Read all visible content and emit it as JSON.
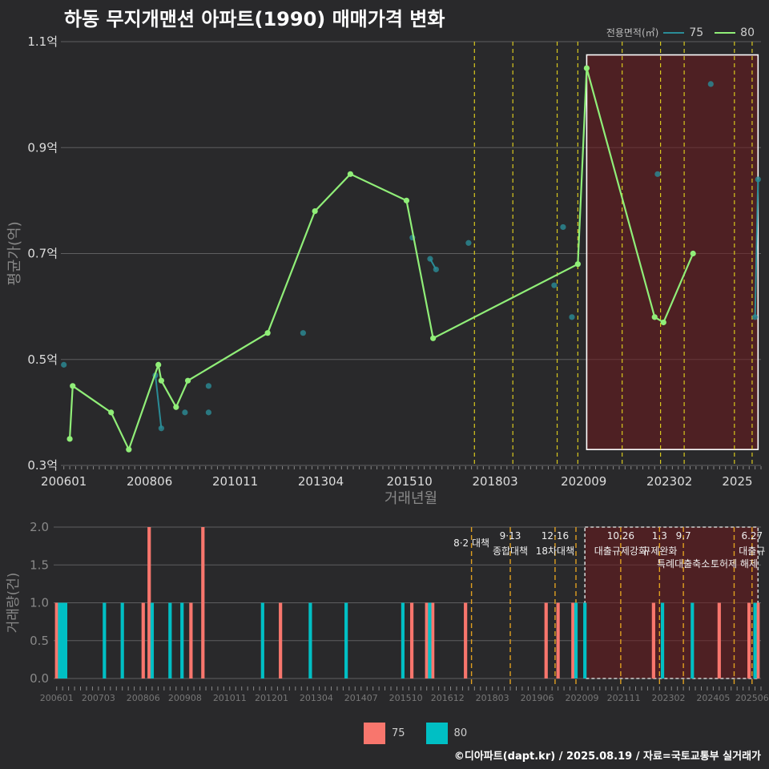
{
  "title": "하동 무지개맨션 아파트(1990) 매매가격 변화",
  "legend": {
    "title": "전용면적(㎡)",
    "items": [
      {
        "name": "75",
        "color": "#2a8c97"
      },
      {
        "name": "80",
        "color": "#90ee78"
      }
    ]
  },
  "bar_legend": {
    "items": [
      {
        "name": "75",
        "color": "#f8766d"
      },
      {
        "name": "80",
        "color": "#00bfc4"
      }
    ]
  },
  "credit": "©디아파트(dapt.kr) / 2025.08.19 / 자료=국토교통부 실거래가",
  "chart_data": [
    {
      "type": "line",
      "xlabel": "거래년월",
      "ylabel": "평균가(억)",
      "ylim": [
        0.3,
        1.1
      ],
      "y_ticks": [
        {
          "v": 0.3,
          "label": "0.3억"
        },
        {
          "v": 0.5,
          "label": "0.5억"
        },
        {
          "v": 0.7,
          "label": "0.7억"
        },
        {
          "v": 0.9,
          "label": "0.9억"
        },
        {
          "v": 1.1,
          "label": "1.1억"
        }
      ],
      "x_ticks": [
        "200601",
        "200806",
        "201011",
        "201304",
        "201510",
        "201803",
        "202009",
        "202302",
        "2025"
      ],
      "highlight_period": [
        "2020-10",
        "2025-08"
      ],
      "policy_lines": [
        "2017-08",
        "2018-09",
        "2019-12",
        "2020-07",
        "2021-10",
        "2022-11",
        "2023-07",
        "2024-12",
        "2025-06"
      ],
      "series": [
        {
          "name": "75",
          "points": [
            [
              "2006-01",
              0.49
            ],
            [
              "2008-08",
              0.47
            ],
            [
              "2008-10",
              0.37
            ],
            [
              "2009-06",
              0.4
            ],
            [
              "2010-02",
              0.4
            ],
            [
              "2010-02",
              0.45
            ],
            [
              "2012-10",
              0.55
            ],
            [
              "2015-11",
              0.73
            ],
            [
              "2016-05",
              0.69
            ],
            [
              "2016-07",
              0.67
            ],
            [
              "2017-06",
              0.72
            ],
            [
              "2019-11",
              0.64
            ],
            [
              "2020-02",
              0.75
            ],
            [
              "2020-05",
              0.58
            ],
            [
              "2022-10",
              0.85
            ],
            [
              "2024-04",
              1.02
            ],
            [
              "2025-07",
              0.58
            ],
            [
              "2025-08",
              0.84
            ]
          ]
        },
        {
          "name": "80",
          "points": [
            [
              "2006-03",
              0.35
            ],
            [
              "2006-04",
              0.45
            ],
            [
              "2007-05",
              0.4
            ],
            [
              "2007-11",
              0.33
            ],
            [
              "2008-09",
              0.49
            ],
            [
              "2008-10",
              0.46
            ],
            [
              "2009-03",
              0.41
            ],
            [
              "2009-07",
              0.46
            ],
            [
              "2011-10",
              0.55
            ],
            [
              "2013-02",
              0.78
            ],
            [
              "2014-02",
              0.85
            ],
            [
              "2015-09",
              0.8
            ],
            [
              "2016-06",
              0.54
            ],
            [
              "2020-07",
              0.68
            ],
            [
              "2020-10",
              1.05
            ],
            [
              "2022-09",
              0.58
            ],
            [
              "2022-12",
              0.57
            ],
            [
              "2023-10",
              0.7
            ]
          ]
        }
      ]
    },
    {
      "type": "bar",
      "xlabel": "",
      "ylabel": "거래량(건)",
      "ylim": [
        0,
        2
      ],
      "y_ticks": [
        {
          "v": 0,
          "label": "0.0"
        },
        {
          "v": 0.5,
          "label": "0.5"
        },
        {
          "v": 1,
          "label": "1.0"
        },
        {
          "v": 1.5,
          "label": "1.5"
        },
        {
          "v": 2,
          "label": "2.0"
        }
      ],
      "x_ticks": [
        "200601",
        "200703",
        "200806",
        "200908",
        "201011",
        "201201",
        "201304",
        "201407",
        "201510",
        "201612",
        "201803",
        "201906",
        "202009",
        "202111",
        "202302",
        "202405",
        "202506"
      ],
      "highlight_period": [
        "2020-10",
        "2025-08"
      ],
      "policy_lines": [
        "2017-08",
        "2018-09",
        "2019-12",
        "2020-07",
        "2021-10",
        "2022-11",
        "2023-07",
        "2024-12",
        "2025-06"
      ],
      "policy_labels": [
        {
          "date": "2017-08",
          "date_label": "",
          "text": "8·2 대책",
          "row": 1
        },
        {
          "date": "2018-09",
          "date_label": "9·13",
          "text": "종합대책",
          "row": 1
        },
        {
          "date": "2019-12",
          "date_label": "12·16",
          "text": "18차대책",
          "row": 1
        },
        {
          "date": "2021-10",
          "date_label": "10.26",
          "text": "대출규제강화",
          "row": 1
        },
        {
          "date": "2022-11",
          "date_label": "1.3",
          "text": "규제완화",
          "row": 1
        },
        {
          "date": "2023-07",
          "date_label": "9.7",
          "text": "특례대출축소",
          "row": 2
        },
        {
          "date": "2024-12",
          "date_label": "",
          "text": "토허제 해제",
          "row": 2
        },
        {
          "date": "2025-06",
          "date_label": "6.27",
          "text": "대출규",
          "row": 1
        }
      ],
      "series": [
        {
          "name": "75",
          "bars": [
            [
              "2006-01",
              1
            ],
            [
              "2008-06",
              1
            ],
            [
              "2008-08",
              2
            ],
            [
              "2009-10",
              1
            ],
            [
              "2010-02",
              2
            ],
            [
              "2012-04",
              1
            ],
            [
              "2015-12",
              1
            ],
            [
              "2016-05",
              1
            ],
            [
              "2016-07",
              1
            ],
            [
              "2017-06",
              1
            ],
            [
              "2019-09",
              1
            ],
            [
              "2020-01",
              1
            ],
            [
              "2020-06",
              1
            ],
            [
              "2022-09",
              1
            ],
            [
              "2024-07",
              1
            ],
            [
              "2025-05",
              1
            ],
            [
              "2025-08",
              1
            ]
          ]
        },
        {
          "name": "80",
          "bars": [
            [
              "2006-02",
              1
            ],
            [
              "2006-03",
              1
            ],
            [
              "2006-04",
              1
            ],
            [
              "2007-05",
              1
            ],
            [
              "2007-11",
              1
            ],
            [
              "2008-09",
              1
            ],
            [
              "2009-03",
              1
            ],
            [
              "2009-07",
              1
            ],
            [
              "2011-10",
              1
            ],
            [
              "2013-02",
              1
            ],
            [
              "2014-02",
              1
            ],
            [
              "2015-09",
              1
            ],
            [
              "2016-06",
              1
            ],
            [
              "2020-07",
              1
            ],
            [
              "2020-10",
              1
            ],
            [
              "2022-12",
              1
            ],
            [
              "2023-10",
              1
            ],
            [
              "2025-07",
              1
            ]
          ]
        }
      ]
    }
  ]
}
